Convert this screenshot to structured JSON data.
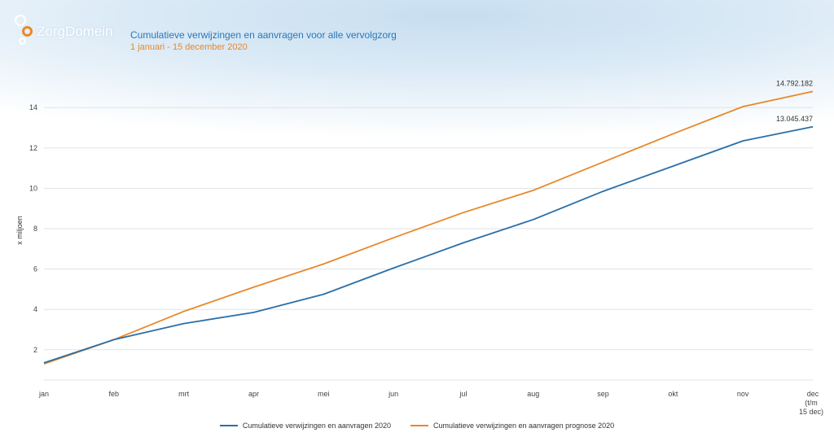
{
  "brand": {
    "name": "ZorgDomein"
  },
  "chart_data": {
    "type": "line",
    "title": "Cumulatieve verwijzingen en aanvragen voor alle vervolgzorg",
    "subtitle": "1 januari - 15 december 2020",
    "xlabel": "",
    "ylabel": "x miljoen",
    "categories": [
      "jan",
      "feb",
      "mrt",
      "apr",
      "mei",
      "jun",
      "jul",
      "aug",
      "sep",
      "okt",
      "nov",
      "dec"
    ],
    "category_notes": {
      "dec": [
        "(t/m",
        "15 dec)"
      ]
    },
    "yticks": [
      2,
      4,
      6,
      8,
      10,
      12,
      14
    ],
    "ylim": [
      0.5,
      15.5
    ],
    "grid": true,
    "legend_position": "bottom",
    "series": [
      {
        "name": "Cumulatieve verwijzingen en aanvragen 2020",
        "color": "#2a6fa8",
        "values": [
          1.35,
          2.5,
          3.3,
          3.85,
          4.75,
          6.05,
          7.3,
          8.45,
          9.85,
          11.1,
          12.35,
          13.05
        ],
        "end_label": "13.045.437"
      },
      {
        "name": "Cumulatieve verwijzingen en aanvragen prognose 2020",
        "color": "#e8882a",
        "values": [
          1.3,
          2.5,
          3.9,
          5.1,
          6.25,
          7.55,
          8.8,
          9.9,
          11.3,
          12.7,
          14.05,
          14.8
        ],
        "end_label": "14.792.182"
      }
    ]
  }
}
